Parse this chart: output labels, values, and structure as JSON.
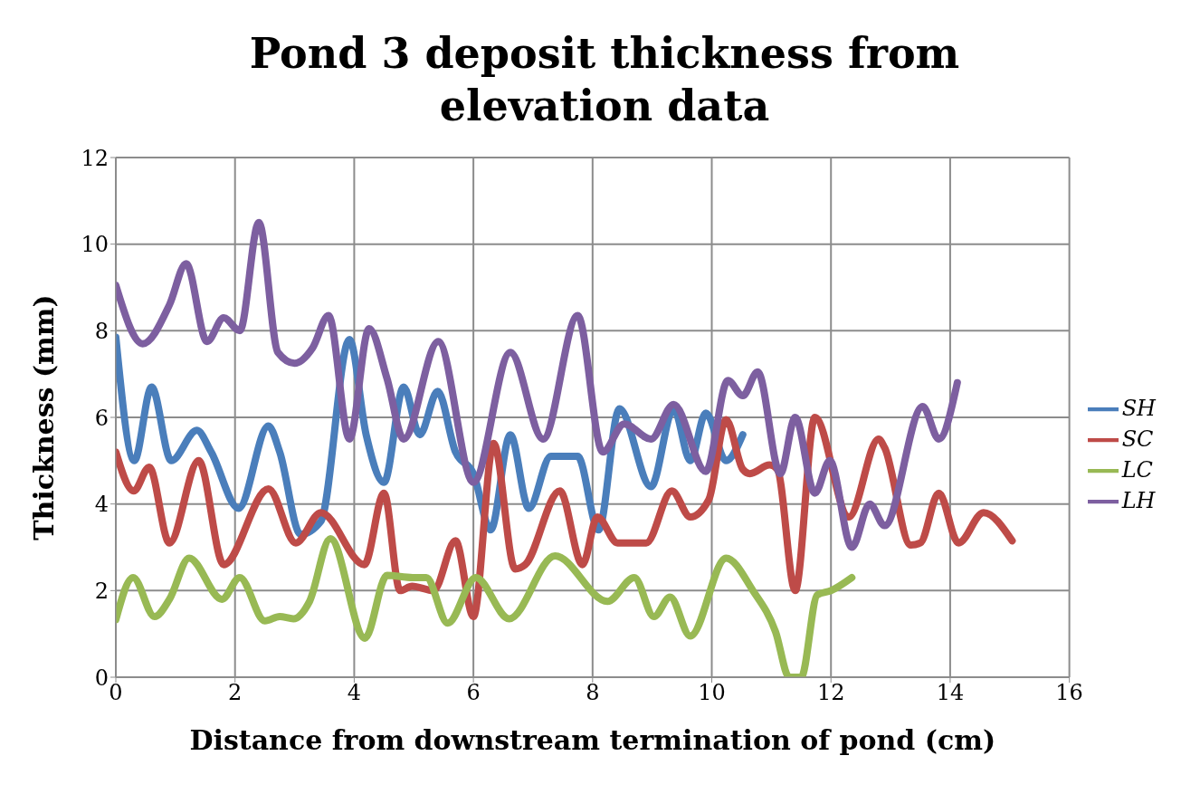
{
  "chart_data": {
    "type": "line",
    "title": "Pond 3 deposit thickness from elevation data",
    "xlabel": "Distance from downstream termination of pond (cm)",
    "ylabel": "Thickness (mm)",
    "xlim": [
      0,
      16
    ],
    "xticks": [
      0,
      2,
      4,
      6,
      8,
      10,
      12,
      14,
      16
    ],
    "ylim": [
      0,
      12
    ],
    "yticks": [
      0,
      2,
      4,
      6,
      8,
      10,
      12
    ],
    "grid": true,
    "legend": "right",
    "marker": "none",
    "line_style": "solid",
    "series": [
      {
        "name": "SH",
        "color": "#4a7ebb",
        "x": [
          0,
          0.31,
          0.6,
          0.93,
          1.36,
          1.6,
          2.06,
          2.56,
          2.75,
          3.1,
          3.44,
          3.92,
          4.2,
          4.5,
          4.83,
          5.1,
          5.4,
          5.7,
          6.0,
          6.29,
          6.62,
          6.93,
          7.3,
          7.75,
          8.1,
          8.45,
          8.98,
          9.36,
          9.64,
          9.9,
          10.24,
          10.52
        ],
        "values": [
          7.85,
          5.0,
          6.7,
          5.0,
          5.7,
          5.2,
          3.9,
          5.8,
          5.2,
          3.3,
          3.6,
          7.8,
          5.6,
          4.5,
          6.7,
          5.6,
          6.6,
          5.2,
          4.7,
          3.4,
          5.6,
          3.9,
          5.1,
          5.1,
          3.4,
          6.2,
          4.4,
          6.2,
          5.0,
          6.1,
          5.0,
          5.6
        ]
      },
      {
        "name": "SC",
        "color": "#be4b48",
        "x": [
          0,
          0.3,
          0.56,
          0.9,
          1.39,
          1.81,
          2.56,
          3.02,
          3.44,
          4.17,
          4.5,
          4.77,
          4.97,
          5.33,
          5.7,
          6.0,
          6.34,
          6.7,
          6.87,
          7.45,
          7.83,
          8.08,
          8.42,
          8.9,
          9.33,
          9.64,
          9.95,
          10.24,
          10.52,
          10.64,
          10.97,
          11.1,
          11.4,
          11.73,
          12.3,
          12.8,
          12.9,
          13.34,
          13.5,
          13.81,
          14.14,
          14.56,
          15.04
        ],
        "values": [
          5.2,
          4.3,
          4.85,
          3.1,
          5.0,
          2.6,
          4.35,
          3.1,
          3.8,
          2.6,
          4.25,
          2.0,
          2.1,
          2.0,
          3.15,
          1.4,
          5.4,
          2.5,
          2.6,
          4.3,
          2.6,
          3.7,
          3.1,
          3.1,
          4.3,
          3.7,
          4.1,
          5.95,
          4.8,
          4.7,
          4.9,
          4.8,
          2.0,
          6.0,
          3.7,
          5.5,
          5.3,
          3.05,
          3.1,
          4.25,
          3.1,
          3.8,
          3.15
        ]
      },
      {
        "name": "LC",
        "color": "#98b954",
        "x": [
          0,
          0.29,
          0.65,
          0.9,
          1.23,
          1.78,
          2.08,
          2.5,
          2.75,
          2.98,
          3.25,
          3.6,
          4.18,
          4.55,
          4.98,
          5.21,
          5.57,
          6.04,
          6.6,
          7.37,
          8.25,
          8.7,
          9.03,
          9.3,
          9.64,
          10.24,
          10.69,
          11.07,
          11.3,
          11.5,
          11.77,
          12.0,
          12.35
        ],
        "values": [
          1.33,
          2.3,
          1.4,
          1.8,
          2.75,
          1.8,
          2.3,
          1.3,
          1.4,
          1.35,
          1.75,
          3.2,
          0.9,
          2.35,
          2.3,
          2.3,
          1.25,
          2.3,
          1.35,
          2.8,
          1.75,
          2.3,
          1.4,
          1.85,
          0.95,
          2.75,
          2.0,
          1.05,
          0,
          0,
          1.9,
          2.0,
          2.3
        ]
      },
      {
        "name": "LH",
        "color": "#7d5fa0",
        "x": [
          0,
          0.45,
          0.9,
          1.18,
          1.53,
          1.81,
          2.08,
          2.4,
          2.72,
          3.0,
          3.3,
          3.57,
          3.92,
          4.25,
          4.55,
          4.83,
          5.41,
          6.0,
          6.62,
          7.17,
          7.75,
          8.17,
          8.53,
          8.98,
          9.36,
          9.9,
          10.27,
          10.52,
          10.77,
          11.15,
          11.4,
          11.73,
          11.98,
          12.35,
          12.65,
          12.9,
          13.54,
          13.81,
          14.12
        ],
        "values": [
          9.05,
          7.7,
          8.6,
          9.55,
          7.75,
          8.3,
          8.0,
          10.5,
          7.5,
          7.25,
          7.6,
          8.35,
          5.5,
          8.05,
          6.9,
          5.5,
          7.75,
          4.5,
          7.5,
          5.5,
          8.35,
          5.2,
          5.85,
          5.5,
          6.3,
          4.75,
          6.85,
          6.5,
          7.05,
          4.7,
          6.0,
          4.25,
          5.0,
          3.0,
          4.0,
          3.5,
          6.25,
          5.5,
          6.8
        ]
      }
    ]
  }
}
